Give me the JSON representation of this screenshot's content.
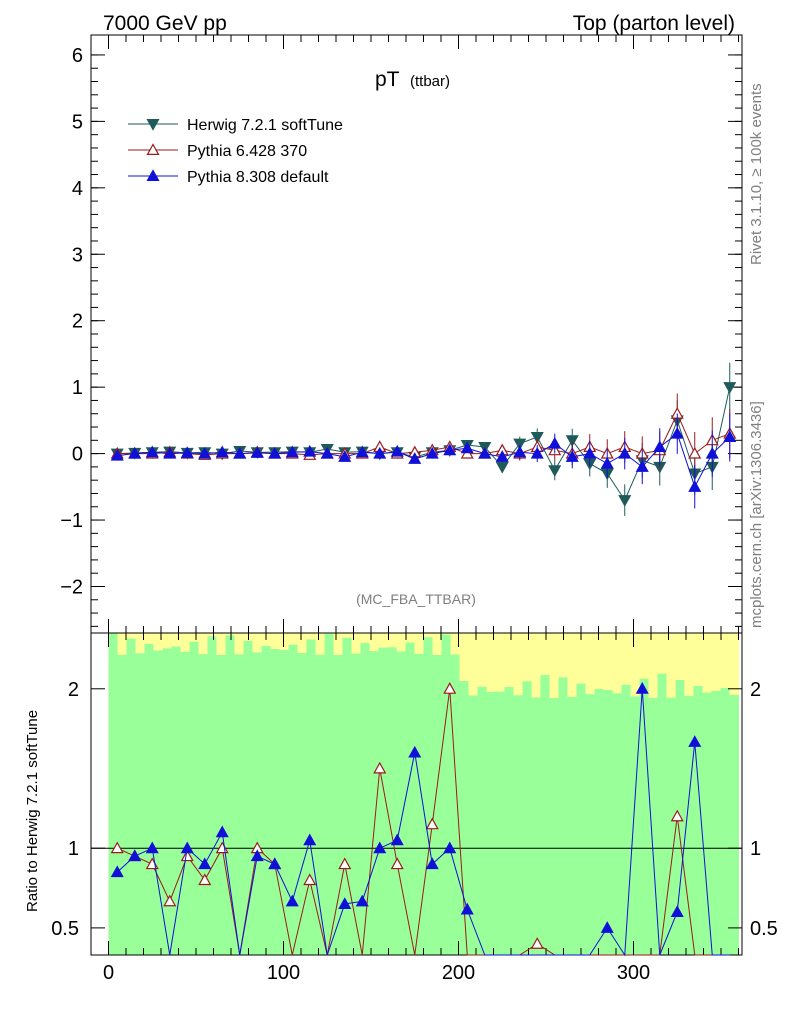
{
  "header": {
    "left": "7000 GeV pp",
    "right": "Top (parton level)"
  },
  "side_labels": {
    "rivet": "Rivet 3.1.10, ≥ 100k events",
    "mcplots": "mcplots.cern.ch [arXiv:1306.3436]"
  },
  "chart_data": {
    "type": "scatter",
    "title_main": "pT",
    "title_sub": "(ttbar)",
    "analysis_tag": "(MC_FBA_TTBAR)",
    "main": {
      "ylim": [
        -2.7,
        6.3
      ],
      "yticks": [
        6,
        5,
        4,
        3,
        2,
        1,
        0,
        -1,
        -2
      ],
      "ytick_labels": [
        "6",
        "5",
        "4",
        "3",
        "2",
        "1",
        "0",
        "−1",
        "−2"
      ]
    },
    "ratio": {
      "ylabel": "Ratio to Herwig 7.2.1 softTune",
      "ylim": [
        0.33,
        2.35
      ],
      "yticks": [
        2,
        1,
        0.5
      ],
      "ytick_labels": [
        "2",
        "1",
        "0.5"
      ]
    },
    "x": {
      "xlim": [
        -10,
        362
      ],
      "xticks": [
        0,
        100,
        200,
        300
      ],
      "xtick_labels": [
        "0",
        "100",
        "200",
        "300"
      ]
    },
    "legend_position": "top-left",
    "series": [
      {
        "name": "Herwig 7.2.1 softTune",
        "color": "#1f5a5a",
        "marker": "triangle-down-filled",
        "x": [
          5,
          15,
          25,
          35,
          45,
          55,
          65,
          75,
          85,
          95,
          105,
          115,
          125,
          135,
          145,
          155,
          165,
          175,
          185,
          195,
          205,
          215,
          225,
          235,
          245,
          255,
          265,
          275,
          285,
          295,
          305,
          315,
          325,
          335,
          345,
          355
        ],
        "y": [
          0.0,
          0.01,
          0.02,
          0.03,
          0.01,
          0.02,
          0.0,
          0.04,
          0.02,
          0.02,
          0.03,
          0.02,
          0.07,
          0.02,
          0.03,
          0.0,
          0.02,
          -0.05,
          0.02,
          0.05,
          0.13,
          0.1,
          -0.2,
          0.15,
          0.25,
          -0.25,
          0.2,
          -0.15,
          -0.3,
          -0.7,
          -0.1,
          -0.2,
          0.5,
          -0.3,
          -0.2,
          1.0
        ]
      },
      {
        "name": "Pythia 6.428 370",
        "color": "#9b1b1b",
        "marker": "triangle-up-open",
        "x": [
          5,
          15,
          25,
          35,
          45,
          55,
          65,
          75,
          85,
          95,
          105,
          115,
          125,
          135,
          145,
          155,
          165,
          175,
          185,
          195,
          205,
          215,
          225,
          235,
          245,
          255,
          265,
          275,
          285,
          295,
          305,
          315,
          325,
          335,
          345,
          355
        ],
        "y": [
          0.0,
          0.0,
          0.0,
          0.02,
          0.0,
          -0.02,
          0.0,
          0.0,
          0.02,
          0.0,
          0.0,
          -0.02,
          0.0,
          0.0,
          0.0,
          0.1,
          0.0,
          0.02,
          0.05,
          0.1,
          0.0,
          0.0,
          0.05,
          0.0,
          0.1,
          0.05,
          0.0,
          0.1,
          0.0,
          0.1,
          0.0,
          0.05,
          0.6,
          0.0,
          0.2,
          0.3
        ]
      },
      {
        "name": "Pythia 8.308 default",
        "color": "#1010d8",
        "marker": "triangle-up-filled",
        "x": [
          5,
          15,
          25,
          35,
          45,
          55,
          65,
          75,
          85,
          95,
          105,
          115,
          125,
          135,
          145,
          155,
          165,
          175,
          185,
          195,
          205,
          215,
          225,
          235,
          245,
          255,
          265,
          275,
          285,
          295,
          305,
          315,
          325,
          335,
          345,
          355
        ],
        "y": [
          -0.03,
          0.0,
          0.02,
          0.0,
          0.01,
          0.0,
          0.02,
          0.0,
          0.01,
          0.0,
          0.02,
          0.03,
          0.0,
          -0.05,
          0.02,
          0.0,
          0.03,
          -0.08,
          0.0,
          0.05,
          0.08,
          0.0,
          -0.05,
          0.02,
          0.0,
          0.15,
          -0.05,
          0.0,
          -0.15,
          0.0,
          -0.2,
          0.1,
          0.3,
          -0.5,
          0.0,
          0.25
        ]
      }
    ]
  }
}
